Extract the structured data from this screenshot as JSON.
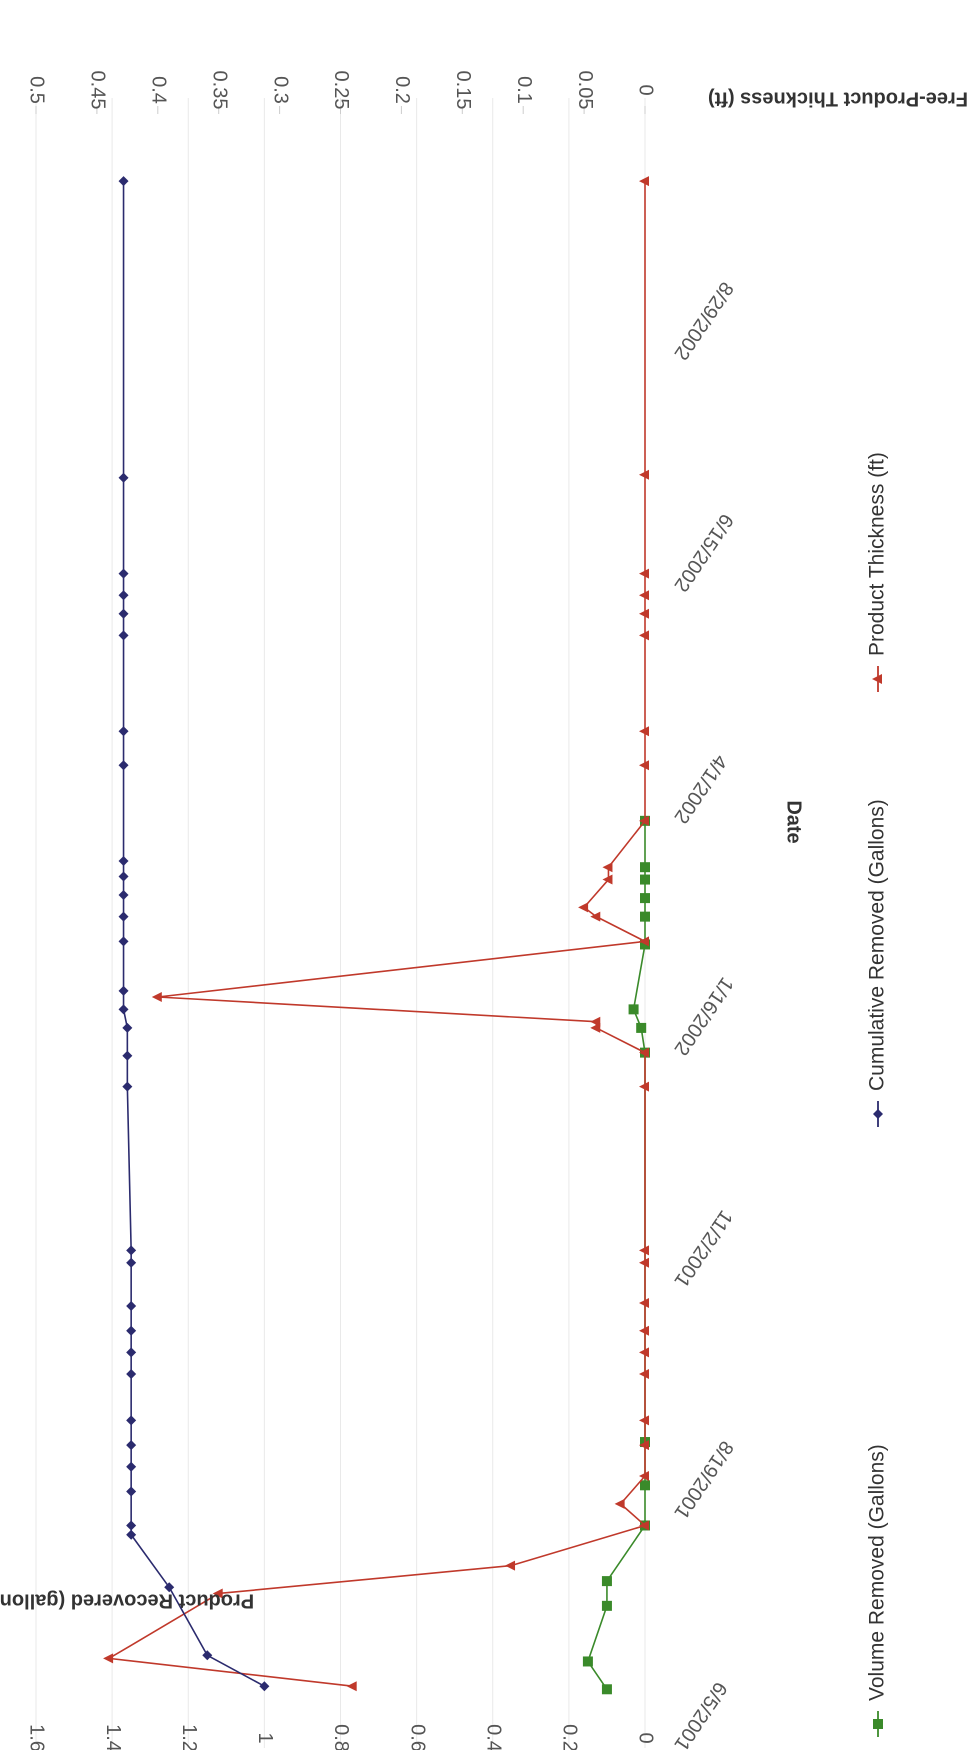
{
  "chart_data": {
    "type": "line",
    "orientation": "rotated-90-clockwise",
    "xlabel": "Date",
    "ylabel": "Product Recovered (gallons)",
    "y2label": "Free-Product Thickness (ft)",
    "ylim": [
      0,
      1.6
    ],
    "y2lim": [
      0,
      0.5
    ],
    "xlim": [
      "6/5/2001",
      "10/26/2002"
    ],
    "date_ticks": [
      "6/5/2001",
      "8/19/2001",
      "11/2/2001",
      "1/16/2002",
      "4/1/2002",
      "6/15/2002",
      "8/29/2002"
    ],
    "y_ticks": [
      "0",
      "0.2",
      "0.4",
      "0.6",
      "0.8",
      "1",
      "1.2",
      "1.4",
      "1.6"
    ],
    "y2_ticks": [
      "0",
      "0.05",
      "0.1",
      "0.15",
      "0.2",
      "0.25",
      "0.3",
      "0.35",
      "0.4",
      "0.45",
      "0.5"
    ],
    "grid": true,
    "legend_position": "bottom",
    "series": [
      {
        "name": "Volume Removed (Gallons)",
        "axis": "left",
        "color": "#3a8a2a",
        "marker": "square",
        "points": [
          {
            "x": "6/24/2001",
            "y": 0.1
          },
          {
            "x": "7/3/2001",
            "y": 0.15
          },
          {
            "x": "7/21/2001",
            "y": 0.1
          },
          {
            "x": "7/29/2001",
            "y": 0.1
          },
          {
            "x": "8/16/2001",
            "y": 0
          },
          {
            "x": "8/29/2001",
            "y": 0
          },
          {
            "x": "9/12/2001",
            "y": 0
          },
          {
            "x": "1/16/2002",
            "y": 0
          },
          {
            "x": "1/24/2002",
            "y": 0.01
          },
          {
            "x": "1/30/2002",
            "y": 0.03
          },
          {
            "x": "2/20/2002",
            "y": 0
          },
          {
            "x": "3/1/2002",
            "y": 0
          },
          {
            "x": "3/7/2002",
            "y": 0
          },
          {
            "x": "3/13/2002",
            "y": 0
          },
          {
            "x": "3/17/2002",
            "y": 0
          },
          {
            "x": "4/1/2002",
            "y": 0
          }
        ]
      },
      {
        "name": "Cumulative Removed (Gallons)",
        "axis": "left",
        "color": "#2b2b6e",
        "marker": "diamond",
        "points": [
          {
            "x": "6/25/2001",
            "y": 1.0
          },
          {
            "x": "7/5/2001",
            "y": 1.15
          },
          {
            "x": "7/27/2001",
            "y": 1.25
          },
          {
            "x": "8/13/2001",
            "y": 1.35
          },
          {
            "x": "8/16/2001",
            "y": 1.35
          },
          {
            "x": "8/27/2001",
            "y": 1.35
          },
          {
            "x": "9/4/2001",
            "y": 1.35
          },
          {
            "x": "9/11/2001",
            "y": 1.35
          },
          {
            "x": "9/19/2001",
            "y": 1.35
          },
          {
            "x": "10/4/2001",
            "y": 1.35
          },
          {
            "x": "10/11/2001",
            "y": 1.35
          },
          {
            "x": "10/18/2001",
            "y": 1.35
          },
          {
            "x": "10/26/2001",
            "y": 1.35
          },
          {
            "x": "11/9/2001",
            "y": 1.35
          },
          {
            "x": "11/13/2001",
            "y": 1.35
          },
          {
            "x": "1/5/2002",
            "y": 1.36
          },
          {
            "x": "1/15/2002",
            "y": 1.36
          },
          {
            "x": "1/24/2002",
            "y": 1.36
          },
          {
            "x": "1/30/2002",
            "y": 1.37
          },
          {
            "x": "2/5/2002",
            "y": 1.37
          },
          {
            "x": "2/21/2002",
            "y": 1.37
          },
          {
            "x": "3/1/2002",
            "y": 1.37
          },
          {
            "x": "3/8/2002",
            "y": 1.37
          },
          {
            "x": "3/14/2002",
            "y": 1.37
          },
          {
            "x": "3/19/2002",
            "y": 1.37
          },
          {
            "x": "4/19/2002",
            "y": 1.37
          },
          {
            "x": "4/30/2002",
            "y": 1.37
          },
          {
            "x": "5/31/2002",
            "y": 1.37
          },
          {
            "x": "6/7/2002",
            "y": 1.37
          },
          {
            "x": "6/13/2002",
            "y": 1.37
          },
          {
            "x": "6/20/2002",
            "y": 1.37
          },
          {
            "x": "7/21/2002",
            "y": 1.37
          },
          {
            "x": "10/25/2002",
            "y": 1.37
          }
        ]
      },
      {
        "name": "Product Thickness (ft)",
        "axis": "right",
        "color": "#c0392b",
        "marker": "triangle",
        "points": [
          {
            "x": "6/25/2001",
            "y": 0.24
          },
          {
            "x": "7/4/2001",
            "y": 0.44
          },
          {
            "x": "7/25/2001",
            "y": 0.35
          },
          {
            "x": "8/3/2001",
            "y": 0.11
          },
          {
            "x": "8/16/2001",
            "y": 0
          },
          {
            "x": "8/23/2001",
            "y": 0.02
          },
          {
            "x": "9/1/2001",
            "y": 0
          },
          {
            "x": "9/11/2001",
            "y": 0
          },
          {
            "x": "9/19/2001",
            "y": 0
          },
          {
            "x": "10/4/2001",
            "y": 0
          },
          {
            "x": "10/11/2001",
            "y": 0
          },
          {
            "x": "10/18/2001",
            "y": 0
          },
          {
            "x": "10/27/2001",
            "y": 0
          },
          {
            "x": "11/9/2001",
            "y": 0
          },
          {
            "x": "11/13/2001",
            "y": 0
          },
          {
            "x": "1/5/2002",
            "y": 0
          },
          {
            "x": "1/16/2002",
            "y": 0
          },
          {
            "x": "1/24/2002",
            "y": 0.04
          },
          {
            "x": "1/26/2002",
            "y": 0.04
          },
          {
            "x": "2/3/2002",
            "y": 0.4
          },
          {
            "x": "2/21/2002",
            "y": 0
          },
          {
            "x": "3/1/2002",
            "y": 0.04
          },
          {
            "x": "3/4/2002",
            "y": 0.05
          },
          {
            "x": "3/13/2002",
            "y": 0.03
          },
          {
            "x": "3/17/2002",
            "y": 0.03
          },
          {
            "x": "4/1/2002",
            "y": 0
          },
          {
            "x": "4/19/2002",
            "y": 0
          },
          {
            "x": "4/30/2002",
            "y": 0
          },
          {
            "x": "5/31/2002",
            "y": 0
          },
          {
            "x": "6/7/2002",
            "y": 0
          },
          {
            "x": "6/13/2002",
            "y": 0
          },
          {
            "x": "6/20/2002",
            "y": 0
          },
          {
            "x": "7/22/2002",
            "y": 0
          },
          {
            "x": "10/25/2002",
            "y": 0
          }
        ]
      }
    ]
  }
}
